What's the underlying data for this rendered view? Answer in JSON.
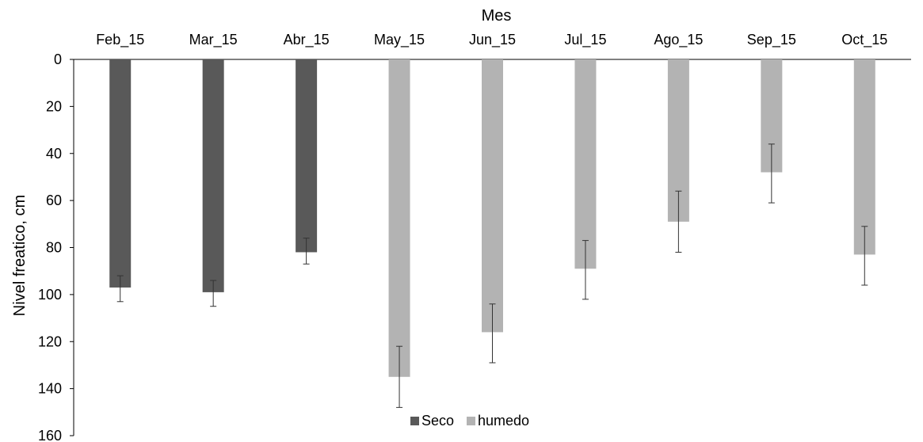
{
  "chart_data": {
    "type": "bar",
    "title": "",
    "xlabel": "Mes",
    "ylabel": "Nivel freatico, cm",
    "x_axis_position": "top",
    "y_axis_inverted": true,
    "ylim": [
      0,
      160
    ],
    "yticks": [
      0,
      20,
      40,
      60,
      80,
      100,
      120,
      140,
      160
    ],
    "grid": false,
    "legend_position": "bottom-center",
    "categories": [
      "Feb_15",
      "Mar_15",
      "Abr_15",
      "May_15",
      "Jun_15",
      "Jul_15",
      "Ago_15",
      "Sep_15",
      "Oct_15"
    ],
    "series": [
      {
        "name": "Seco",
        "color": "#595959",
        "values": [
          97,
          99,
          82,
          null,
          null,
          null,
          null,
          null,
          null
        ],
        "error_low": [
          92,
          94,
          76,
          null,
          null,
          null,
          null,
          null,
          null
        ],
        "error_high": [
          103,
          105,
          87,
          null,
          null,
          null,
          null,
          null,
          null
        ]
      },
      {
        "name": "humedo",
        "color": "#b3b3b3",
        "values": [
          null,
          null,
          null,
          135,
          116,
          89,
          69,
          48,
          83
        ],
        "error_low": [
          null,
          null,
          null,
          122,
          104,
          77,
          56,
          36,
          71
        ],
        "error_high": [
          null,
          null,
          null,
          148,
          129,
          102,
          82,
          61,
          96
        ]
      }
    ]
  }
}
